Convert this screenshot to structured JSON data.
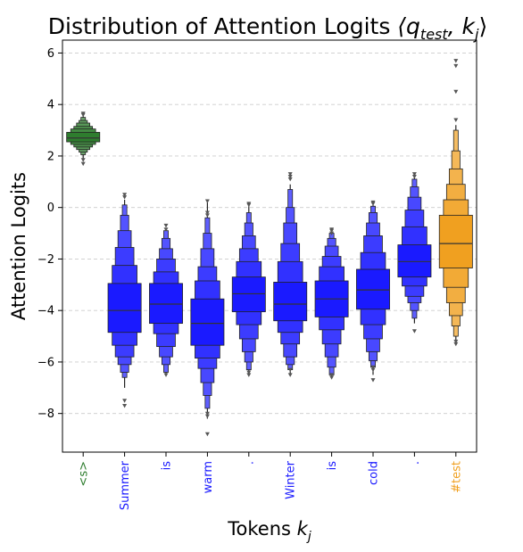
{
  "chart_data": {
    "type": "boxen",
    "title_main": "Distribution of Attention Logits ",
    "title_math": "⟨q",
    "title_sub": "test",
    "title_mid": ", k",
    "title_sub2": "j",
    "title_end": "⟩",
    "ylabel": "Attention Logits",
    "xlabel_main": "Tokens ",
    "xlabel_var": "k",
    "xlabel_sub": "j",
    "ylim": [
      -9.5,
      6.5
    ],
    "yticks": [
      6,
      4,
      2,
      0,
      -2,
      -4,
      -6,
      -8
    ],
    "ytick_labels": [
      "6",
      "4",
      "2",
      "0",
      "−2",
      "−4",
      "−6",
      "−8"
    ],
    "grid": "horizontal-dashed",
    "colors": {
      "bos": "#2e7d2e",
      "context": "#1a1aff",
      "test": "#f0a020",
      "outlier": "#555555"
    },
    "categories": [
      "<s>",
      "Summer",
      "is",
      "warm",
      ".",
      "Winter",
      "is",
      "cold",
      ".",
      "#test"
    ],
    "category_colors": [
      "#2e7d2e",
      "#1a1aff",
      "#1a1aff",
      "#1a1aff",
      "#1a1aff",
      "#1a1aff",
      "#1a1aff",
      "#1a1aff",
      "#1a1aff",
      "#f0a020"
    ],
    "series": [
      {
        "median": 2.7,
        "levels": [
          [
            2.55,
            2.92
          ],
          [
            2.45,
            3.05
          ],
          [
            2.35,
            3.15
          ],
          [
            2.25,
            3.28
          ],
          [
            2.15,
            3.38
          ],
          [
            2.05,
            3.5
          ]
        ],
        "whisker": [
          1.9,
          3.55
        ],
        "outliers": [
          1.7,
          1.85,
          3.6,
          3.65
        ]
      },
      {
        "median": -4.0,
        "levels": [
          [
            -4.85,
            -2.95
          ],
          [
            -5.35,
            -2.25
          ],
          [
            -5.8,
            -1.55
          ],
          [
            -6.1,
            -0.9
          ],
          [
            -6.4,
            -0.3
          ],
          [
            -6.6,
            0.1
          ]
        ],
        "whisker": [
          -7.0,
          0.3
        ],
        "outliers": [
          -7.5,
          -7.7,
          0.4,
          0.5
        ]
      },
      {
        "median": -3.75,
        "levels": [
          [
            -4.5,
            -2.95
          ],
          [
            -4.9,
            -2.5
          ],
          [
            -5.4,
            -2.0
          ],
          [
            -5.8,
            -1.6
          ],
          [
            -6.1,
            -1.2
          ],
          [
            -6.4,
            -0.9
          ]
        ],
        "whisker": [
          -6.5,
          -0.8
        ],
        "outliers": [
          -0.7,
          -0.85,
          -6.5
        ]
      },
      {
        "median": -4.5,
        "levels": [
          [
            -5.35,
            -3.55
          ],
          [
            -5.85,
            -2.85
          ],
          [
            -6.25,
            -2.3
          ],
          [
            -6.8,
            -1.6
          ],
          [
            -7.3,
            -1.0
          ],
          [
            -7.8,
            -0.4
          ]
        ],
        "whisker": [
          -8.2,
          0.2
        ],
        "outliers": [
          -8.0,
          -8.1,
          -8.8,
          0.25,
          -0.2,
          -0.3
        ]
      },
      {
        "median": -3.35,
        "levels": [
          [
            -4.05,
            -2.7
          ],
          [
            -4.55,
            -2.1
          ],
          [
            -5.1,
            -1.6
          ],
          [
            -5.6,
            -1.1
          ],
          [
            -6.0,
            -0.6
          ],
          [
            -6.3,
            -0.2
          ]
        ],
        "whisker": [
          -6.4,
          0.05
        ],
        "outliers": [
          -6.4,
          -6.5,
          0.1,
          0.15
        ]
      },
      {
        "median": -3.75,
        "levels": [
          [
            -4.4,
            -2.9
          ],
          [
            -4.85,
            -2.1
          ],
          [
            -5.3,
            -1.4
          ],
          [
            -5.8,
            -0.6
          ],
          [
            -6.1,
            0.0
          ],
          [
            -6.3,
            0.7
          ]
        ],
        "whisker": [
          -6.5,
          0.9
        ],
        "outliers": [
          -6.3,
          -6.5,
          1.1,
          1.2,
          1.3
        ]
      },
      {
        "median": -3.55,
        "levels": [
          [
            -4.25,
            -2.85
          ],
          [
            -4.75,
            -2.3
          ],
          [
            -5.3,
            -1.9
          ],
          [
            -5.8,
            -1.5
          ],
          [
            -6.2,
            -1.2
          ],
          [
            -6.5,
            -1.0
          ]
        ],
        "whisker": [
          -6.6,
          -0.95
        ],
        "outliers": [
          -6.5,
          -6.6,
          -0.85,
          -0.9,
          -1.0
        ]
      },
      {
        "median": -3.2,
        "levels": [
          [
            -3.95,
            -2.4
          ],
          [
            -4.55,
            -1.75
          ],
          [
            -5.1,
            -1.1
          ],
          [
            -5.6,
            -0.6
          ],
          [
            -5.95,
            -0.2
          ],
          [
            -6.2,
            0.05
          ]
        ],
        "whisker": [
          -6.5,
          0.1
        ],
        "outliers": [
          -6.2,
          -6.3,
          -6.7,
          0.15,
          0.2
        ]
      },
      {
        "median": -2.1,
        "levels": [
          [
            -2.7,
            -1.45
          ],
          [
            -3.05,
            -0.75
          ],
          [
            -3.45,
            -0.1
          ],
          [
            -3.7,
            0.4
          ],
          [
            -4.0,
            0.8
          ],
          [
            -4.3,
            1.1
          ]
        ],
        "whisker": [
          -4.5,
          1.25
        ],
        "outliers": [
          -4.8,
          1.2,
          1.3
        ]
      },
      {
        "median": -1.4,
        "levels": [
          [
            -2.35,
            -0.3
          ],
          [
            -3.1,
            0.3
          ],
          [
            -3.7,
            0.9
          ],
          [
            -4.2,
            1.5
          ],
          [
            -4.6,
            2.2
          ],
          [
            -5.0,
            3.0
          ]
        ],
        "whisker": [
          -5.2,
          3.2
        ],
        "outliers": [
          -5.2,
          -5.3,
          3.4,
          4.5,
          5.5,
          5.7
        ]
      }
    ]
  }
}
